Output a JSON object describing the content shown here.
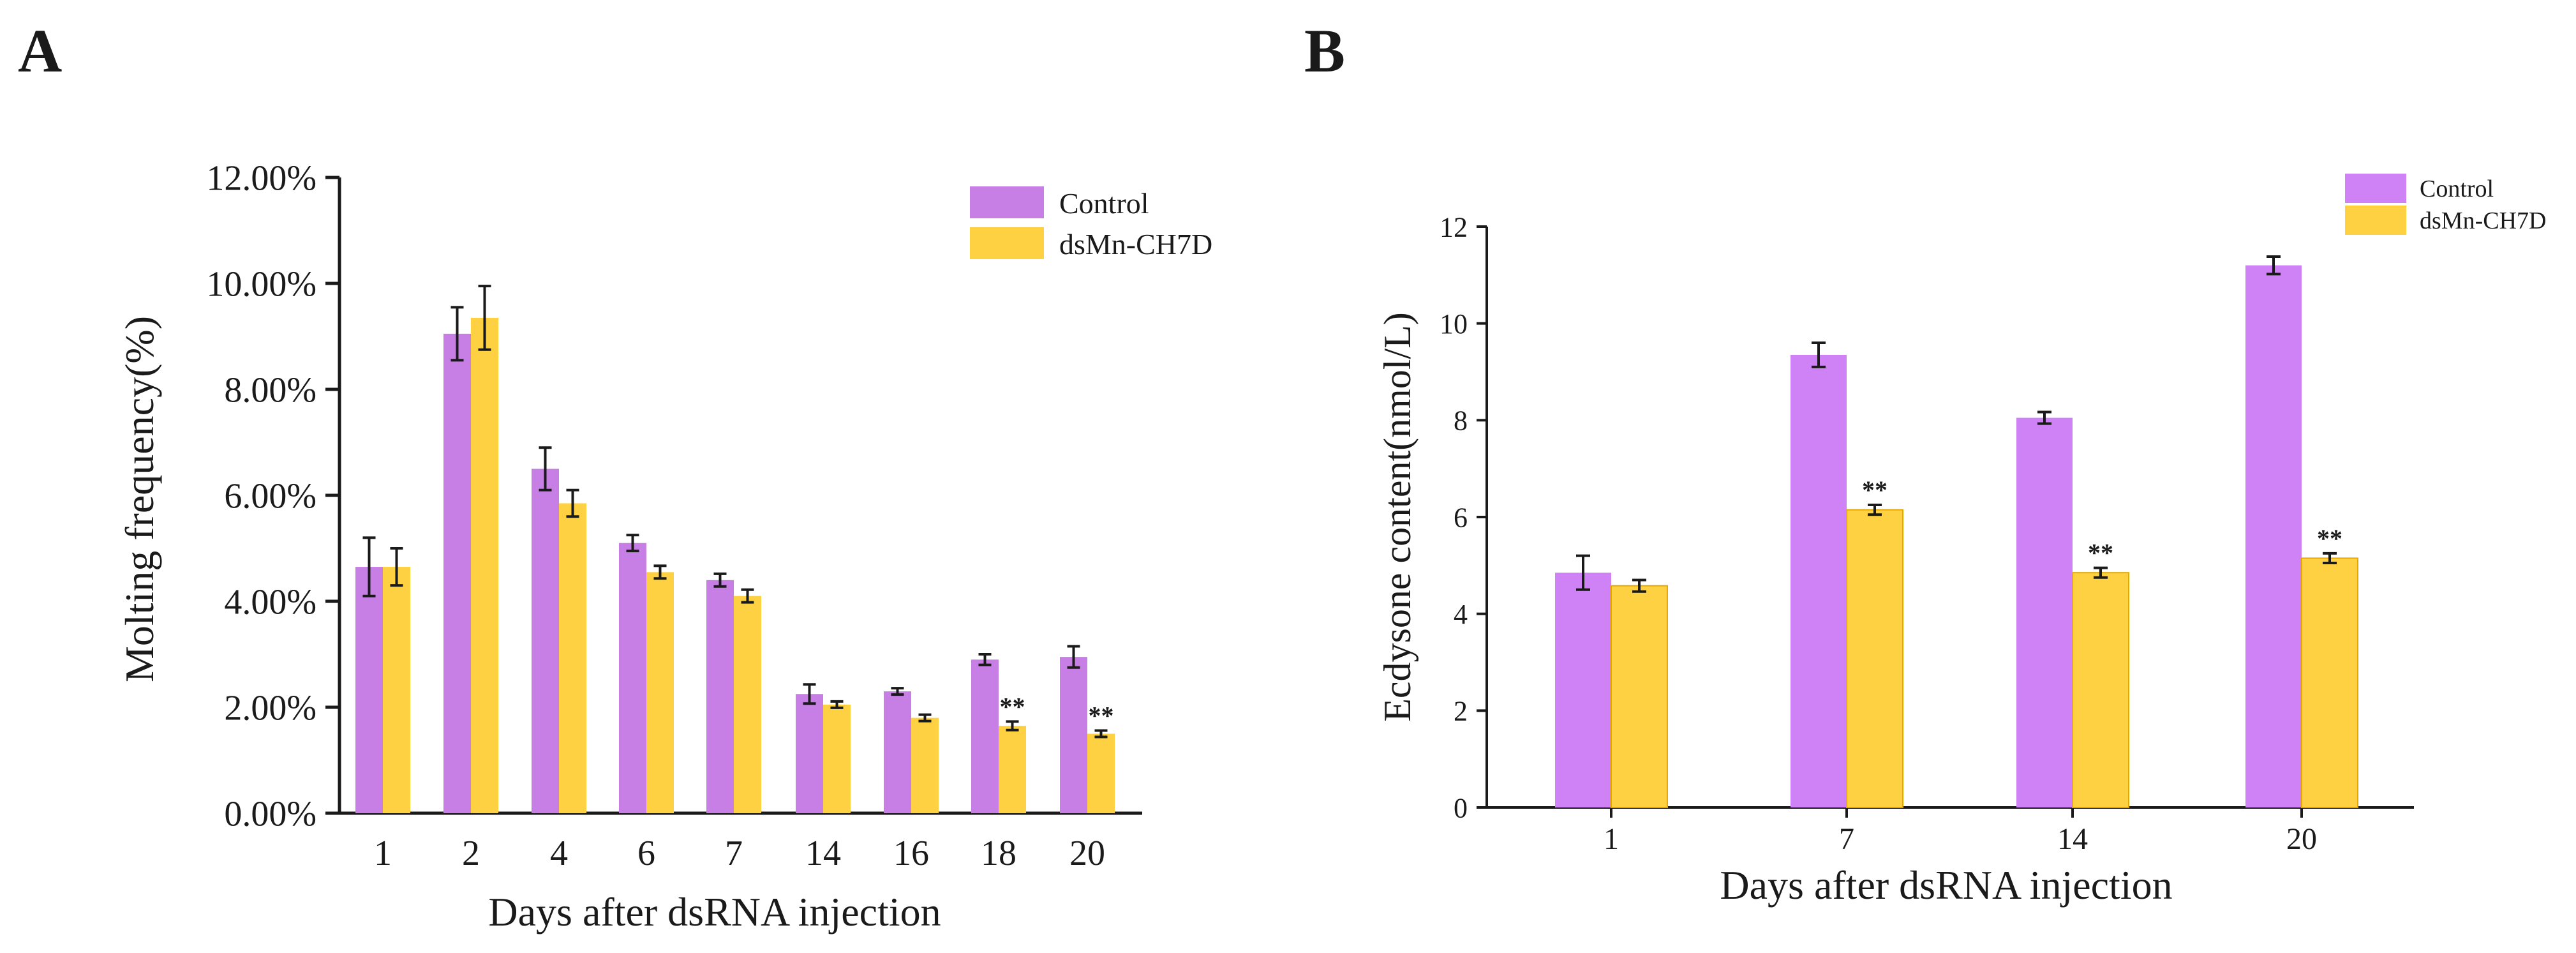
{
  "colors": {
    "control": "#c77fe6",
    "control_b": "#cf82f5",
    "treated": "#fdd142",
    "axis": "#1a1a1a"
  },
  "chart_data": [
    {
      "panel": "A",
      "type": "bar",
      "categories": [
        "1",
        "2",
        "4",
        "6",
        "7",
        "14",
        "16",
        "18",
        "20"
      ],
      "series": [
        {
          "name": "Control",
          "values": [
            4.65,
            9.05,
            6.5,
            5.1,
            4.4,
            2.25,
            2.3,
            2.9,
            2.95
          ],
          "errors": [
            0.55,
            0.5,
            0.4,
            0.15,
            0.12,
            0.18,
            0.06,
            0.1,
            0.2
          ]
        },
        {
          "name": "dsMn-CH7D",
          "values": [
            4.65,
            9.35,
            5.85,
            4.55,
            4.1,
            2.05,
            1.8,
            1.65,
            1.5
          ],
          "errors": [
            0.35,
            0.6,
            0.25,
            0.12,
            0.12,
            0.06,
            0.06,
            0.08,
            0.06
          ]
        }
      ],
      "annotations": [
        {
          "category": "18",
          "series": "dsMn-CH7D",
          "text": "**"
        },
        {
          "category": "20",
          "series": "dsMn-CH7D",
          "text": "**"
        }
      ],
      "xlabel": "Days after dsRNA injection",
      "ylabel": "Molting frequency(%)",
      "ylim": [
        0,
        12
      ],
      "yticks": [
        "0.00%",
        "2.00%",
        "4.00%",
        "6.00%",
        "8.00%",
        "10.00%",
        "12.00%"
      ],
      "legend": "top-right",
      "grid": false
    },
    {
      "panel": "B",
      "type": "bar",
      "categories": [
        "1",
        "7",
        "14",
        "20"
      ],
      "series": [
        {
          "name": "Control",
          "values": [
            4.85,
            9.35,
            8.05,
            11.2
          ],
          "errors": [
            0.35,
            0.25,
            0.12,
            0.18
          ]
        },
        {
          "name": "dsMn-CH7D",
          "values": [
            4.58,
            6.15,
            4.85,
            5.15
          ],
          "errors": [
            0.12,
            0.1,
            0.1,
            0.1
          ]
        }
      ],
      "annotations": [
        {
          "category": "7",
          "series": "dsMn-CH7D",
          "text": "**"
        },
        {
          "category": "14",
          "series": "dsMn-CH7D",
          "text": "**"
        },
        {
          "category": "20",
          "series": "dsMn-CH7D",
          "text": "**"
        }
      ],
      "xlabel": "Days after dsRNA injection",
      "ylabel": "Ecdysone content(nmol/L)",
      "ylim": [
        0,
        12
      ],
      "yticks": [
        "0",
        "2",
        "4",
        "6",
        "8",
        "10",
        "12"
      ],
      "legend": "top-right",
      "grid": false
    }
  ]
}
